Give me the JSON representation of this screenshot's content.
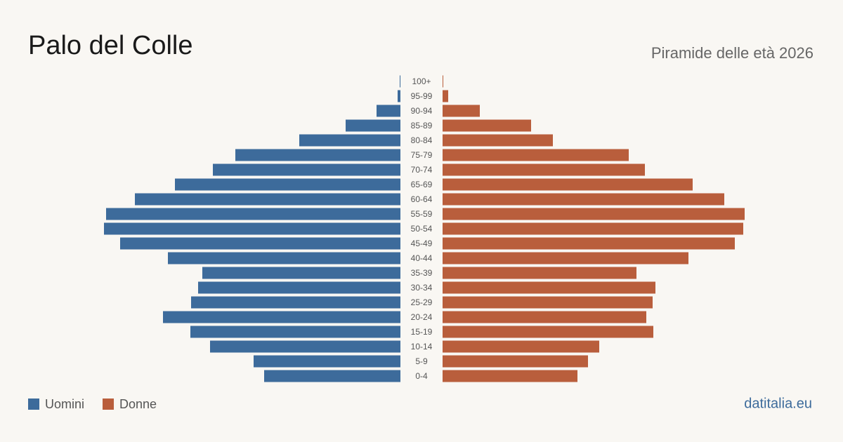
{
  "chart_data": {
    "type": "pyramid",
    "title": "Palo del Colle",
    "subtitle": "Piramide delle età 2026",
    "source": "datitalia.eu",
    "categories": [
      "0-4",
      "5-9",
      "10-14",
      "15-19",
      "20-24",
      "25-29",
      "30-34",
      "35-39",
      "40-44",
      "45-49",
      "50-54",
      "55-59",
      "60-64",
      "65-69",
      "70-74",
      "75-79",
      "80-84",
      "85-89",
      "90-94",
      "95-99",
      "100+"
    ],
    "series": [
      {
        "name": "Uomini",
        "color": "#3d6b9b",
        "values": [
          388,
          418,
          542,
          598,
          676,
          596,
          576,
          564,
          662,
          798,
          844,
          838,
          756,
          642,
          534,
          470,
          288,
          156,
          68,
          8,
          2
        ]
      },
      {
        "name": "Donne",
        "color": "#b95e3c",
        "values": [
          384,
          414,
          446,
          600,
          580,
          598,
          606,
          552,
          700,
          832,
          856,
          860,
          802,
          712,
          576,
          530,
          314,
          252,
          106,
          16,
          2
        ]
      }
    ],
    "xlim": [
      0,
      900
    ],
    "legend": "bottom-left"
  }
}
